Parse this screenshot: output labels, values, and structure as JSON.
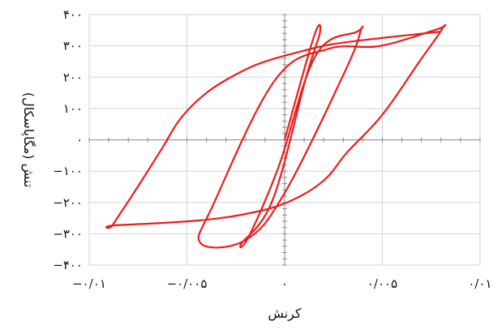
{
  "chart_data": {
    "type": "line",
    "title": "",
    "xlabel": "کرنش",
    "ylabel": "تنش (مگاپاسکال)",
    "xlim": [
      -0.01,
      0.01
    ],
    "ylim": [
      -400,
      400
    ],
    "grid": true,
    "x_ticks": [
      {
        "value": -0.01,
        "label": "−۰/۰۱"
      },
      {
        "value": -0.005,
        "label": "−۰/۰۰۵"
      },
      {
        "value": 0,
        "label": "۰"
      },
      {
        "value": 0.005,
        "label": "۰/۰۰۵"
      },
      {
        "value": 0.01,
        "label": "۰/۰۱"
      }
    ],
    "y_ticks": [
      {
        "value": 400,
        "label": "۴۰۰"
      },
      {
        "value": 300,
        "label": "۳۰۰"
      },
      {
        "value": 200,
        "label": "۲۰۰"
      },
      {
        "value": 100,
        "label": "۱۰۰"
      },
      {
        "value": 0,
        "label": "۰"
      },
      {
        "value": -100,
        "label": "−۱۰۰"
      },
      {
        "value": -200,
        "label": "−۲۰۰"
      },
      {
        "value": -300,
        "label": "−۳۰۰"
      },
      {
        "value": -400,
        "label": "−۴۰۰"
      }
    ],
    "series_color": "#ee1c1c",
    "series": [
      {
        "points": [
          [
            0.0,
            0
          ],
          [
            0.0015,
            330
          ],
          [
            0.0018,
            340
          ],
          [
            0.0011,
            200
          ],
          [
            -0.0006,
            -190
          ],
          [
            -0.0022,
            -330
          ],
          [
            -0.0018,
            -305
          ],
          [
            -0.0003,
            -85
          ],
          [
            0.0016,
            270
          ],
          [
            0.0037,
            345
          ],
          [
            0.0039,
            350
          ],
          [
            0.0031,
            220
          ],
          [
            0.0,
            -170
          ],
          [
            -0.002,
            -320
          ],
          [
            -0.0043,
            -330
          ],
          [
            -0.0036,
            -200
          ],
          [
            -0.0005,
            190
          ],
          [
            0.0022,
            290
          ],
          [
            0.0049,
            300
          ],
          [
            0.0078,
            353
          ],
          [
            0.0081,
            358
          ],
          [
            0.0069,
            250
          ],
          [
            0.005,
            80
          ],
          [
            0.0032,
            -40
          ],
          [
            0.002,
            -130
          ],
          [
            0.0003,
            -195
          ],
          [
            -0.0017,
            -233
          ],
          [
            -0.0045,
            -258
          ],
          [
            -0.0087,
            -273
          ],
          [
            -0.0088,
            -272
          ],
          [
            -0.0077,
            -168
          ],
          [
            -0.0063,
            -30
          ],
          [
            -0.0053,
            70
          ],
          [
            -0.004,
            150
          ],
          [
            -0.0024,
            212
          ],
          [
            -0.001,
            250
          ],
          [
            0.001,
            285
          ],
          [
            0.0024,
            305
          ],
          [
            0.0045,
            322
          ],
          [
            0.0079,
            345
          ]
        ]
      }
    ]
  }
}
